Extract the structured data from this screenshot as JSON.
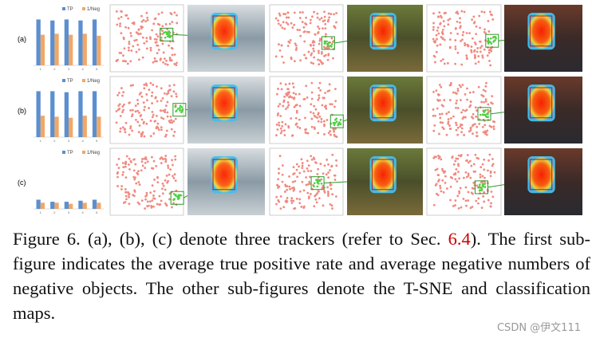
{
  "figure": {
    "rows": [
      {
        "label": "(a)",
        "chart": {
          "type": "bar",
          "categories": [
            "1",
            "2",
            "3",
            "4",
            "5"
          ],
          "ylim": [
            0,
            1
          ],
          "series": [
            {
              "name": "TP",
              "color": "#5b8fd0",
              "values": [
                0.9,
                0.88,
                0.9,
                0.88,
                0.9
              ]
            },
            {
              "name": "1/Neg",
              "color": "#f0a868",
              "values": [
                0.6,
                0.62,
                0.6,
                0.62,
                0.58
              ]
            }
          ]
        }
      },
      {
        "label": "(b)",
        "chart": {
          "type": "bar",
          "categories": [
            "1",
            "2",
            "3",
            "4",
            "5"
          ],
          "ylim": [
            0,
            1
          ],
          "series": [
            {
              "name": "TP",
              "color": "#5b8fd0",
              "values": [
                0.9,
                0.9,
                0.88,
                0.9,
                0.9
              ]
            },
            {
              "name": "1/Neg",
              "color": "#f0a868",
              "values": [
                0.42,
                0.4,
                0.38,
                0.42,
                0.4
              ]
            }
          ]
        }
      },
      {
        "label": "(c)",
        "chart": {
          "type": "bar",
          "categories": [
            "1",
            "2",
            "3",
            "4",
            "5"
          ],
          "ylim": [
            0,
            1
          ],
          "series": [
            {
              "name": "TP",
              "color": "#5b8fd0",
              "values": [
                0.18,
                0.14,
                0.14,
                0.16,
                0.18
              ]
            },
            {
              "name": "1/Neg",
              "color": "#f0a868",
              "values": [
                0.12,
                0.12,
                0.1,
                0.12,
                0.12
              ]
            }
          ]
        }
      }
    ],
    "caption": {
      "before": "Figure 6. (a), (b), (c) denote three trackers (refer to Sec. ",
      "ref": "6.4",
      "after": "). The first sub-figure indicates the average true positive rate and average negative numbers of negative objects. The other sub-figures denote the T-SNE and classification maps."
    }
  },
  "watermark": "CSDN @伊文111"
}
